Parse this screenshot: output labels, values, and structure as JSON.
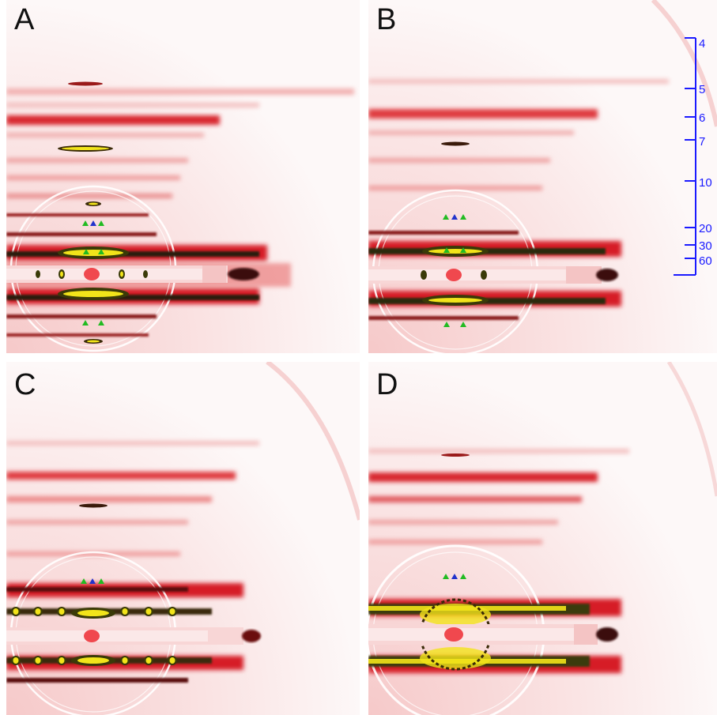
{
  "panels": [
    {
      "id": "A",
      "label": "A"
    },
    {
      "id": "B",
      "label": "B"
    },
    {
      "id": "C",
      "label": "C"
    },
    {
      "id": "D",
      "label": "D"
    }
  ],
  "scale_bar": {
    "color": "#1a1aff",
    "ticks": [
      "4",
      "5",
      "6",
      "7",
      "10",
      "20",
      "30",
      "60"
    ]
  },
  "colors": {
    "background": "#fbf4f4",
    "reflection": "#e0202a",
    "strong_reflection": "#2a2a08",
    "yellow": "#f2e41a",
    "marker_green": "#22bb22",
    "marker_blue": "#2233cc"
  }
}
